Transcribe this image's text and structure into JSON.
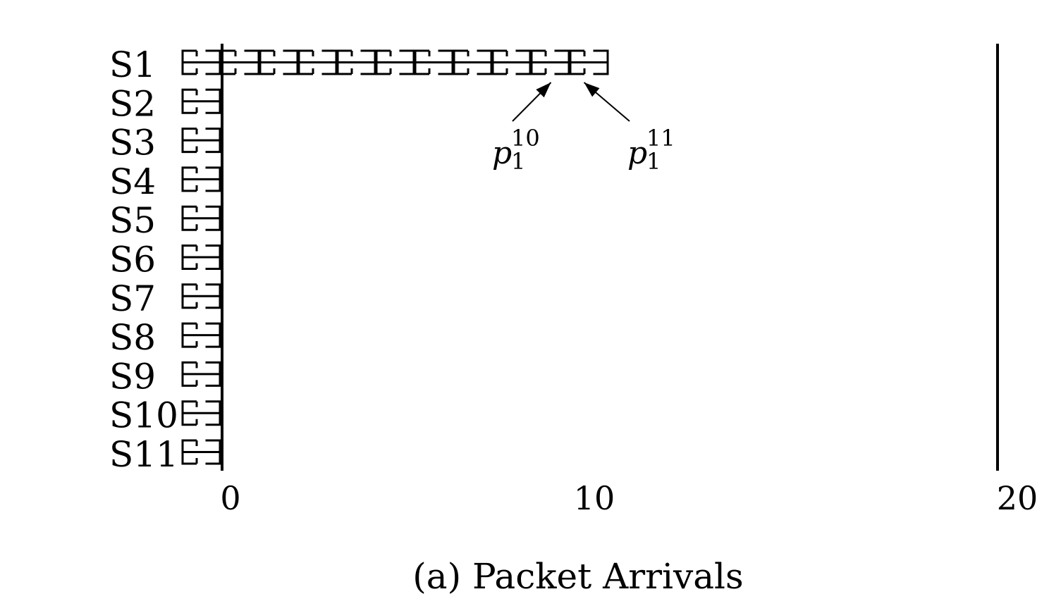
{
  "chart_data": {
    "type": "timeline",
    "x_ticks": [
      "0",
      "10",
      "20"
    ],
    "xlim": [
      0,
      20
    ],
    "rows": [
      {
        "label": "S1",
        "packets": 11
      },
      {
        "label": "S2",
        "packets": 1
      },
      {
        "label": "S3",
        "packets": 1
      },
      {
        "label": "S4",
        "packets": 1
      },
      {
        "label": "S5",
        "packets": 1
      },
      {
        "label": "S6",
        "packets": 1
      },
      {
        "label": "S7",
        "packets": 1
      },
      {
        "label": "S8",
        "packets": 1
      },
      {
        "label": "S9",
        "packets": 1
      },
      {
        "label": "S10",
        "packets": 1
      },
      {
        "label": "S11",
        "packets": 1
      }
    ],
    "annotations": [
      {
        "base": "p",
        "subscript": "1",
        "superscript": "10",
        "row": 0,
        "packet_index": 9
      },
      {
        "base": "p",
        "subscript": "1",
        "superscript": "11",
        "row": 0,
        "packet_index": 10
      }
    ],
    "caption": "(a) Packet Arrivals"
  }
}
